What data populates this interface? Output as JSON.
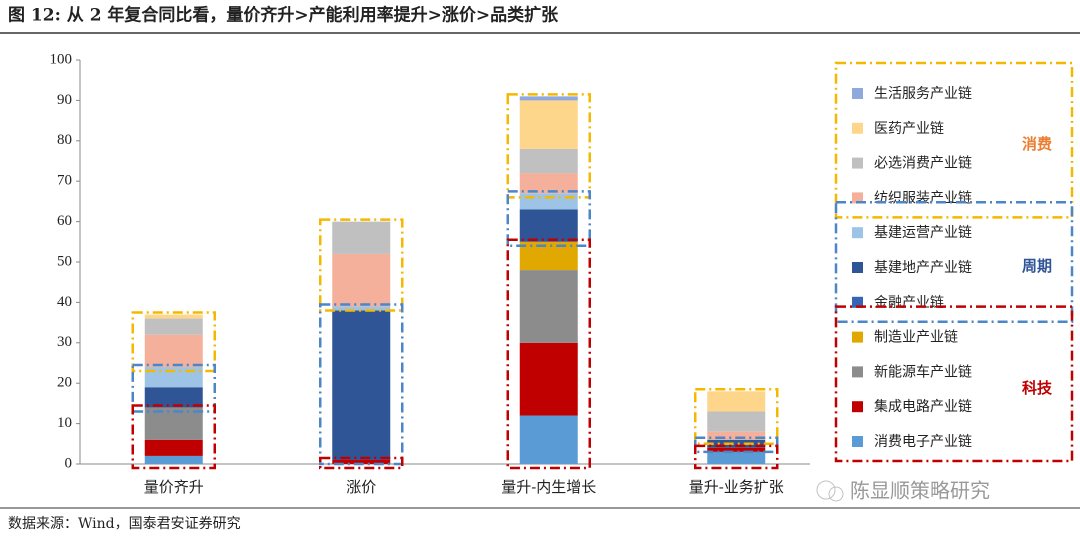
{
  "chart_data": {
    "type": "stacked_bar",
    "title": "图 12: 从 2 年复合同比看，量价齐升>产能利用率提升>涨价>品类扩张",
    "source": "数据来源：Wind，国泰君安证券研究",
    "watermark": "陈显顺策略研究",
    "categories": [
      "量价齐升",
      "涨价",
      "量升-内生增长",
      "量升-业务扩张"
    ],
    "series": [
      {
        "name": "消费电子产业链",
        "color": "#5b9bd5",
        "values": [
          2,
          0,
          12,
          3
        ]
      },
      {
        "name": "集成电路产业链",
        "color": "#c00000",
        "values": [
          4,
          1,
          18,
          1
        ]
      },
      {
        "name": "新能源车产业链",
        "color": "#8c8c8c",
        "values": [
          8,
          0,
          18,
          0
        ]
      },
      {
        "name": "制造业产业链",
        "color": "#e0a800",
        "values": [
          0,
          0,
          7,
          0
        ]
      },
      {
        "name": "金融产业链",
        "color": "#3565b5",
        "values": [
          0,
          0,
          0,
          0
        ]
      },
      {
        "name": "基建地产产业链",
        "color": "#2f5597",
        "values": [
          5,
          37,
          8,
          2
        ]
      },
      {
        "name": "基建运营产业链",
        "color": "#9dc3e6",
        "values": [
          5,
          1,
          4,
          0
        ]
      },
      {
        "name": "纺织服装产业链",
        "color": "#f4b09a",
        "values": [
          8,
          13,
          5,
          2
        ]
      },
      {
        "name": "必选消费产业链",
        "color": "#c0c0c0",
        "values": [
          4,
          8,
          6,
          5
        ]
      },
      {
        "name": "医药产业链",
        "color": "#fdd68c",
        "values": [
          1,
          0,
          12,
          5
        ]
      },
      {
        "name": "生活服务产业链",
        "color": "#8ea9db",
        "values": [
          0,
          0,
          1,
          0
        ]
      }
    ],
    "groups": [
      {
        "name": "消费",
        "color": "#f5b800",
        "label_color": "#ed7d31",
        "series": [
          7,
          8,
          9,
          10
        ]
      },
      {
        "name": "周期",
        "color": "#4a86c8",
        "label_color": "#2f5597",
        "series": [
          4,
          5,
          6
        ]
      },
      {
        "name": "科技",
        "color": "#c00000",
        "label_color": "#c00000",
        "series": [
          0,
          1,
          2,
          3
        ]
      }
    ],
    "ylim": [
      0,
      100
    ],
    "yticks": [
      0,
      10,
      20,
      30,
      40,
      50,
      60,
      70,
      80,
      90,
      100
    ],
    "grid": false
  }
}
